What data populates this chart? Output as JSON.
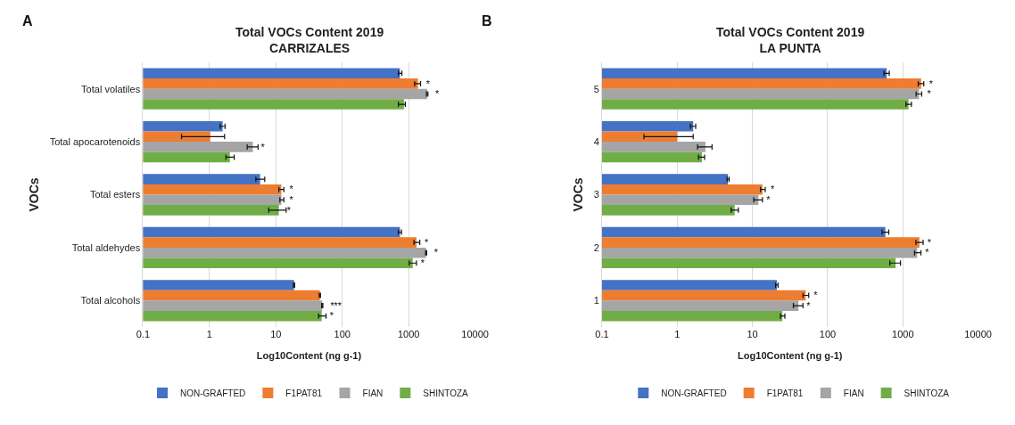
{
  "chart_data": [
    {
      "type": "bar",
      "orientation": "horizontal",
      "title": "Total VOCs Content 2019\nCARRIZALES",
      "annotations": [
        "A"
      ],
      "xlabel": "Log10Content (ng g-1)",
      "ylabel": "VOCs",
      "log": "x",
      "grid": "x",
      "legend": "bottom",
      "xlim": [
        0.1,
        10000
      ],
      "xticks": [
        0.1,
        1,
        10,
        100,
        1000,
        10000
      ],
      "categories": [
        "Total volatiles",
        "Total apocarotenoids",
        "Total esters",
        "Total aldehydes",
        "Total alcohols"
      ],
      "series": [
        {
          "name": "NON-GRAFTED",
          "color": "#4472c4",
          "values": [
            740,
            1.58,
            5.8,
            740,
            18.8
          ],
          "errors": [
            [
              700,
              790
            ],
            [
              1.45,
              1.72
            ],
            [
              5.0,
              6.8
            ],
            [
              700,
              780
            ],
            [
              18.4,
              19.2
            ]
          ],
          "value_labels": [
            null,
            null,
            null,
            null,
            null
          ]
        },
        {
          "name": "F1PAT81",
          "color": "#ed7d31",
          "values": [
            1380,
            1.03,
            12.1,
            1310,
            46
          ],
          "errors": [
            [
              1230,
              1510
            ],
            [
              0.38,
              1.69
            ],
            [
              11.1,
              13.2
            ],
            [
              1200,
              1470
            ],
            [
              45,
              47
            ]
          ],
          "value_labels": [
            "*",
            null,
            "*",
            "*",
            null
          ]
        },
        {
          "name": "FIAN",
          "color": "#a5a5a5",
          "values": [
            1900,
            4.5,
            12.1,
            1830,
            50
          ],
          "errors": [
            [
              1850,
              1950
            ],
            [
              3.7,
              5.4
            ],
            [
              11.5,
              13.2
            ],
            [
              1800,
              1870
            ],
            [
              49,
              51
            ]
          ],
          "value_labels": [
            "*",
            "*",
            "*",
            "*",
            "***"
          ]
        },
        {
          "name": "SHINTOZA",
          "color": "#70ad47",
          "values": [
            850,
            2.03,
            11.1,
            1150,
            49
          ],
          "errors": [
            [
              700,
              890
            ],
            [
              1.77,
              2.36
            ],
            [
              7.8,
              14.3
            ],
            [
              1020,
              1310
            ],
            [
              44,
              57
            ]
          ],
          "value_labels": [
            null,
            null,
            "*",
            "*",
            "*"
          ]
        }
      ]
    },
    {
      "type": "bar",
      "orientation": "horizontal",
      "title": "Total VOCs Content 2019\nLA PUNTA",
      "annotations": [
        "B"
      ],
      "xlabel": "Log10Content (ng g-1)",
      "ylabel": "VOCs",
      "log": "x",
      "grid": "x",
      "legend": "bottom",
      "xlim": [
        0.1,
        10000
      ],
      "xticks": [
        0.1,
        1,
        10,
        100,
        1000,
        10000
      ],
      "categories": [
        "5",
        "4",
        "3",
        "2",
        "1"
      ],
      "series": [
        {
          "name": "NON-GRAFTED",
          "color": "#4472c4",
          "values": [
            610,
            1.63,
            4.73,
            585,
            21.1
          ],
          "errors": [
            [
              560,
              660
            ],
            [
              1.5,
              1.76
            ],
            [
              4.6,
              4.9
            ],
            [
              530,
              650
            ],
            [
              20.3,
              21.9
            ]
          ],
          "value_labels": [
            null,
            null,
            null,
            null,
            null
          ]
        },
        {
          "name": "F1PAT81",
          "color": "#ed7d31",
          "values": [
            1750,
            1.0,
            13.6,
            1660,
            51
          ],
          "errors": [
            [
              1600,
              1900
            ],
            [
              0.36,
              1.63
            ],
            [
              12.8,
              14.8
            ],
            [
              1490,
              1860
            ],
            [
              47,
              56
            ]
          ],
          "value_labels": [
            "*",
            null,
            "*",
            "*",
            "*"
          ]
        },
        {
          "name": "FIAN",
          "color": "#a5a5a5",
          "values": [
            1640,
            2.37,
            12.0,
            1550,
            40.9
          ],
          "errors": [
            [
              1500,
              1780
            ],
            [
              1.86,
              2.9
            ],
            [
              10.4,
              13.6
            ],
            [
              1430,
              1740
            ],
            [
              35,
              47
            ]
          ],
          "value_labels": [
            "*",
            null,
            "*",
            "*",
            "*"
          ]
        },
        {
          "name": "SHINTOZA",
          "color": "#70ad47",
          "values": [
            1190,
            2.13,
            5.8,
            800,
            25
          ],
          "errors": [
            [
              1100,
              1300
            ],
            [
              1.92,
              2.31
            ],
            [
              5.2,
              6.5
            ],
            [
              670,
              930
            ],
            [
              23.5,
              27
            ]
          ],
          "value_labels": [
            null,
            null,
            null,
            null,
            null
          ]
        }
      ]
    }
  ]
}
